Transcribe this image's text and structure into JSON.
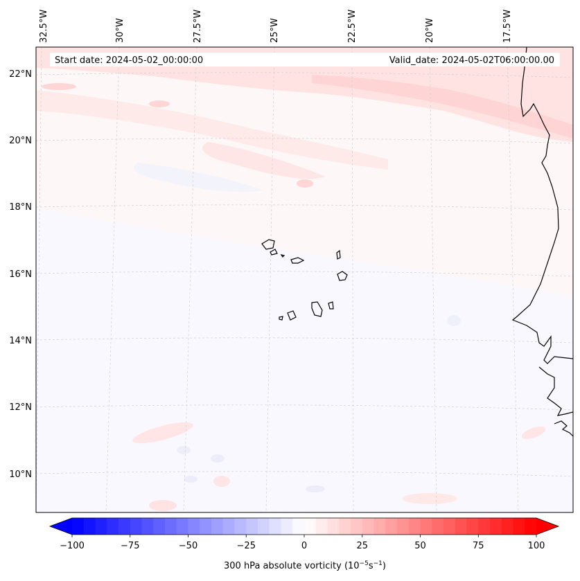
{
  "map": {
    "start_label": "Start date: 2024-05-02_00:00:00",
    "valid_label": "Valid_date: 2024-05-02T06:00:00.00",
    "lon_labels": [
      "32.5°W",
      "30°W",
      "27.5°W",
      "25°W",
      "22.5°W",
      "20°W",
      "17.5°W"
    ],
    "lat_labels": [
      "22°N",
      "20°N",
      "18°N",
      "16°N",
      "14°N",
      "12°N",
      "10°N"
    ]
  },
  "colorbar": {
    "label_main": "300 hPa absolute vorticity (10",
    "label_exp1": "−5",
    "label_mid": "s",
    "label_exp2": "−1",
    "label_end": ")",
    "ticks": [
      "−100",
      "−75",
      "−50",
      "−25",
      "0",
      "25",
      "50",
      "75",
      "100"
    ],
    "min_color": "#0000ff",
    "mid_color": "#ffffff",
    "max_color": "#ff0000"
  }
}
